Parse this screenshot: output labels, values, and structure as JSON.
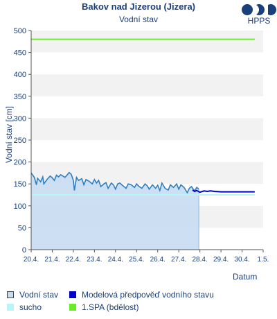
{
  "header": {
    "title": "Bakov nad Jizerou (Jizera)",
    "subtitle": "Vodní stav",
    "logo_text": "HPPS"
  },
  "legend": {
    "items": [
      {
        "name": "legend-vodni-stav",
        "label": "Vodní stav",
        "swatch": "outline",
        "color": "#c6dcf2",
        "border": "#444444"
      },
      {
        "name": "legend-modelova-predpoved",
        "label": "Modelová předpověď vodního stavu",
        "swatch": "fill",
        "color": "#0000cc"
      },
      {
        "name": "legend-sucho",
        "label": "sucho",
        "swatch": "fill",
        "color": "#b8f6f6"
      },
      {
        "name": "legend-1spa",
        "label": "1.SPA (bdělost)",
        "swatch": "fill",
        "color": "#66ee22"
      }
    ]
  },
  "chart_data": {
    "type": "line",
    "title": "Bakov nad Jizerou (Jizera)",
    "subtitle": "Vodní stav",
    "xlabel": "Datum",
    "ylabel": "Vodní stav [cm]",
    "ylim": [
      0,
      500
    ],
    "yticks": [
      0,
      50,
      100,
      150,
      200,
      250,
      300,
      350,
      400,
      450,
      500
    ],
    "xlim": [
      0,
      11
    ],
    "xtick_labels": [
      "20.4.",
      "21.4.",
      "22.4.",
      "23.4.",
      "24.4.",
      "25.4.",
      "26.4.",
      "27.4.",
      "28.4.",
      "29.4.",
      "30.4.",
      "1.5."
    ],
    "grid": "horizontal bands",
    "colors": {
      "observed_line": "#2f7fc0",
      "observed_fill": "#c6dcf2",
      "forecast": "#0000cc",
      "drought": "#b8f6f6",
      "spa1": "#66ee22"
    },
    "series": [
      {
        "name": "Vodní stav",
        "x": [
          0,
          0.15,
          0.25,
          0.3,
          0.45,
          0.55,
          0.6,
          0.75,
          0.9,
          1.0,
          1.1,
          1.2,
          1.3,
          1.4,
          1.5,
          1.6,
          1.7,
          1.8,
          1.9,
          2.0,
          2.05,
          2.15,
          2.25,
          2.4,
          2.5,
          2.6,
          2.75,
          2.9,
          3.0,
          3.1,
          3.2,
          3.3,
          3.45,
          3.55,
          3.65,
          3.8,
          3.9,
          4.0,
          4.1,
          4.2,
          4.35,
          4.5,
          4.6,
          4.75,
          4.9,
          5.0,
          5.1,
          5.25,
          5.4,
          5.5,
          5.6,
          5.75,
          5.9,
          6.0,
          6.1,
          6.2,
          6.35,
          6.5,
          6.6,
          6.75,
          6.9,
          7.0,
          7.1,
          7.25,
          7.4,
          7.5,
          7.6,
          7.75,
          7.85,
          7.95
        ],
        "y": [
          175,
          165,
          148,
          163,
          155,
          166,
          150,
          160,
          168,
          164,
          158,
          170,
          166,
          171,
          168,
          165,
          170,
          176,
          172,
          158,
          135,
          165,
          158,
          162,
          148,
          160,
          156,
          150,
          160,
          152,
          158,
          144,
          150,
          153,
          140,
          152,
          148,
          138,
          150,
          152,
          146,
          140,
          150,
          148,
          142,
          150,
          145,
          140,
          150,
          146,
          138,
          148,
          140,
          147,
          135,
          152,
          140,
          136,
          148,
          142,
          150,
          138,
          148,
          142,
          130,
          140,
          144,
          134,
          142,
          138
        ]
      },
      {
        "name": "Modelová předpověď vodního stavu",
        "x": [
          7.65,
          7.75,
          7.85,
          8.0,
          8.2,
          8.35,
          8.5,
          8.7,
          9.0,
          9.3,
          9.5,
          10.0,
          10.3,
          10.6
        ],
        "y": [
          136,
          133,
          135,
          131,
          134,
          133,
          134,
          133,
          132,
          132,
          132,
          132,
          132,
          132
        ]
      },
      {
        "name": "sucho",
        "x": [
          0,
          10.6
        ],
        "y": [
          125,
          125
        ]
      },
      {
        "name": "1.SPA (bdělost)",
        "x": [
          0,
          10.6
        ],
        "y": [
          480,
          480
        ]
      }
    ]
  }
}
